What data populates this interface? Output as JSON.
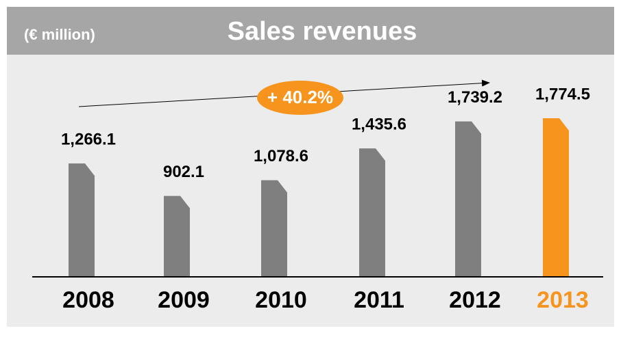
{
  "chart_data": {
    "type": "bar",
    "title": "Sales revenues",
    "subtitle": "(€ million)",
    "categories": [
      "2008",
      "2009",
      "2010",
      "2011",
      "2012",
      "2013"
    ],
    "values": [
      1266.1,
      902.1,
      1078.6,
      1435.6,
      1739.2,
      1774.5
    ],
    "value_labels": [
      "1,266.1",
      "902.1",
      "1,078.6",
      "1,435.6",
      "1,739.2",
      "1,774.5"
    ],
    "color": "#7f7f7f",
    "highlight_color": "#f7941d",
    "highlight": 5,
    "annotation": "+ 40.2%"
  }
}
